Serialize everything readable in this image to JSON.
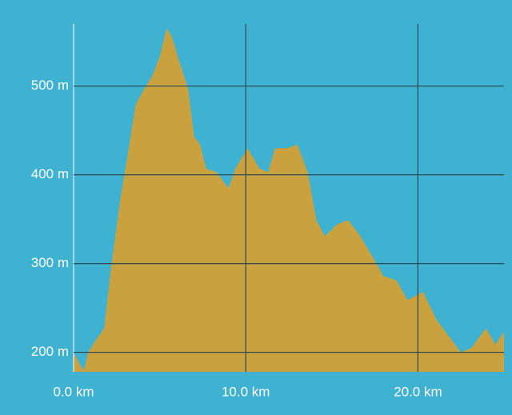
{
  "chart_data": {
    "type": "area",
    "color": "#c9a13e",
    "grid": true,
    "x": [
      0,
      0.37,
      0.6,
      0.84,
      1.3,
      1.77,
      2.2,
      2.7,
      3.16,
      3.6,
      4.1,
      4.56,
      5.0,
      5.4,
      5.7,
      6.2,
      6.65,
      7.0,
      7.35,
      7.7,
      8.3,
      9.0,
      9.4,
      10.1,
      10.8,
      11.3,
      11.7,
      12.4,
      13.0,
      13.6,
      14.1,
      14.6,
      15.3,
      15.95,
      16.65,
      17.35,
      18.0,
      18.75,
      19.4,
      20.3,
      21.1,
      21.8,
      22.5,
      23.1,
      23.95,
      24.5,
      25.0
    ],
    "values": [
      200,
      186,
      180,
      200,
      214,
      227,
      299,
      371,
      425,
      479,
      497,
      511,
      533,
      565,
      556,
      524,
      497,
      443,
      434,
      407,
      403,
      385,
      407,
      430,
      407,
      403,
      430,
      430,
      434,
      403,
      349,
      331,
      344,
      349,
      331,
      308,
      286,
      281,
      259,
      268,
      236,
      218,
      200,
      205,
      227,
      209,
      223
    ],
    "xlim": [
      0,
      25
    ],
    "ylim": [
      178,
      570
    ],
    "xticks": [
      {
        "value": 0,
        "label": "0.0 km"
      },
      {
        "value": 10,
        "label": "10.0 km"
      },
      {
        "value": 20,
        "label": "20.0 km"
      }
    ],
    "yticks": [
      {
        "value": 200,
        "label": "200 m"
      },
      {
        "value": 300,
        "label": "300 m"
      },
      {
        "value": 400,
        "label": "400 m"
      },
      {
        "value": 500,
        "label": "500 m"
      }
    ]
  }
}
